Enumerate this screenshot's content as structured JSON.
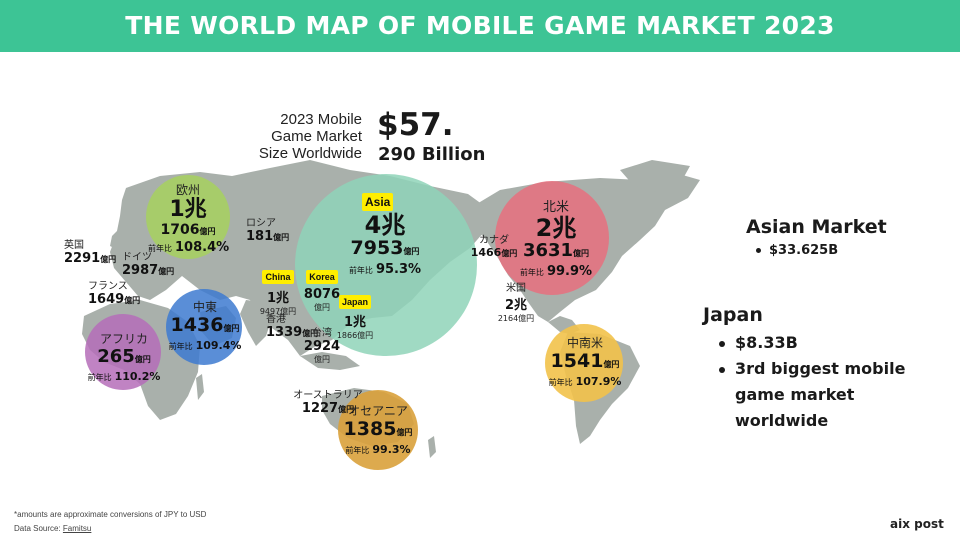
{
  "title": "THE WORLD MAP OF MOBILE GAME MARKET 2023",
  "headline": {
    "label_line1": "2023 Mobile",
    "label_line2": "Game Market",
    "label_line3": "Size Worldwide",
    "value_line1": "$57.",
    "value_line2": "290 Billion"
  },
  "regions": {
    "europe": {
      "name": "欧州",
      "main": "1兆",
      "sub": "1706",
      "unit": "億円",
      "yoy_label": "前年比",
      "yoy": "108.4%",
      "color": "#a6cf63"
    },
    "asia": {
      "tag": "Asia",
      "main": "4兆",
      "sub": "7953",
      "unit": "億円",
      "yoy_label": "前年比",
      "yoy": "95.3%",
      "color": "#8fd3b9"
    },
    "north_america": {
      "name": "北米",
      "main": "2兆",
      "sub": "3631",
      "unit": "億円",
      "yoy_label": "前年比",
      "yoy": "99.9%",
      "color": "#e8707e"
    },
    "middle_east": {
      "name": "中東",
      "main": "1436",
      "unit": "億円",
      "yoy_label": "前年比",
      "yoy": "109.4%",
      "color": "#3d7ad0"
    },
    "africa": {
      "name": "アフリカ",
      "main": "265",
      "unit": "億円",
      "yoy_label": "前年比",
      "yoy": "110.2%",
      "color": "#b56db8"
    },
    "latin_america": {
      "name": "中南米",
      "main": "1541",
      "unit": "億円",
      "yoy_label": "前年比",
      "yoy": "107.9%",
      "color": "#f2c24a"
    },
    "oceania": {
      "name": "オセアニア",
      "main": "1385",
      "unit": "億円",
      "yoy_label": "前年比",
      "yoy": "99.3%",
      "color": "#d9a13b"
    }
  },
  "countries": {
    "russia": {
      "name": "ロシア",
      "value": "181",
      "unit": "億円"
    },
    "uk": {
      "name": "英国",
      "value": "2291",
      "unit": "億円"
    },
    "germany": {
      "name": "ドイツ",
      "value": "2987",
      "unit": "億円"
    },
    "france": {
      "name": "フランス",
      "value": "1649",
      "unit": "億円"
    },
    "china": {
      "tag": "China",
      "value": "1兆",
      "sub": "9497億円"
    },
    "korea": {
      "tag": "Korea",
      "value": "8076",
      "unit": "億円"
    },
    "japan": {
      "tag": "Japan",
      "value": "1兆",
      "sub": "1866億円"
    },
    "hong_kong": {
      "name": "香港",
      "value": "1339",
      "unit": "億円"
    },
    "taiwan": {
      "name": "台湾",
      "value": "2924",
      "unit": "億円"
    },
    "australia": {
      "name": "オーストラリア",
      "value": "1227",
      "unit": "億円"
    },
    "canada": {
      "name": "カナダ",
      "value": "1466",
      "unit": "億円"
    },
    "usa": {
      "name": "米国",
      "value": "2兆",
      "sub": "2164億円"
    }
  },
  "sidebar": {
    "asian_market": {
      "heading": "Asian Market",
      "items": [
        "$33.625B"
      ]
    },
    "japan": {
      "heading": "Japan",
      "items": [
        "$8.33B",
        "3rd biggest mobile",
        "game market",
        "worldwide"
      ]
    }
  },
  "footer": {
    "note": "*amounts are approximate conversions of JPY to USD",
    "source_label": "Data Source: ",
    "source_link": "Famitsu",
    "brand": "aix post"
  },
  "colors": {
    "banner": "#3dc495",
    "land": "#a9b0ab",
    "tag": "#ffee00"
  }
}
